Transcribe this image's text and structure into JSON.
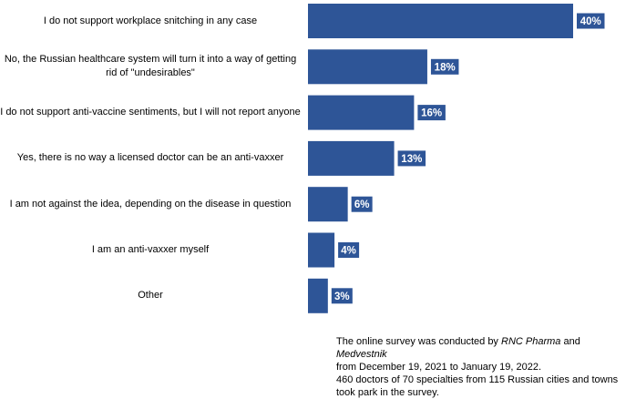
{
  "chart_data": {
    "type": "bar",
    "orientation": "horizontal",
    "categories": [
      "I do not support workplace snitching in any case",
      "No, the Russian healthcare system will turn it into a way of getting rid of \"undesirables\"",
      "I do not support anti-vaccine sentiments, but I will not report anyone",
      "Yes, there is no way a licensed doctor can be an anti-vaxxer",
      "I am not against the idea, depending on the disease in question",
      "I am an anti-vaxxer myself",
      "Other"
    ],
    "values": [
      40,
      18,
      16,
      13,
      6,
      4,
      3
    ],
    "data_labels": [
      "40%",
      "18%",
      "16%",
      "13%",
      "6%",
      "4%",
      "3%"
    ],
    "xlim": [
      0,
      40
    ],
    "grid": false,
    "legend": "none",
    "bar_color": "#2E5597",
    "label_bg_color": "#2E5597",
    "label_text_color": "#ffffff"
  },
  "note": {
    "line1_prefix": "The online survey was conducted by ",
    "source1": "RNC Pharma",
    "line1_and": " and ",
    "source2": "Medvestnik",
    "line2": "from December 19, 2021 to January 19, 2022.",
    "line3": "460 doctors of 70 specialties from 115 Russian cities and towns took park in the survey."
  }
}
